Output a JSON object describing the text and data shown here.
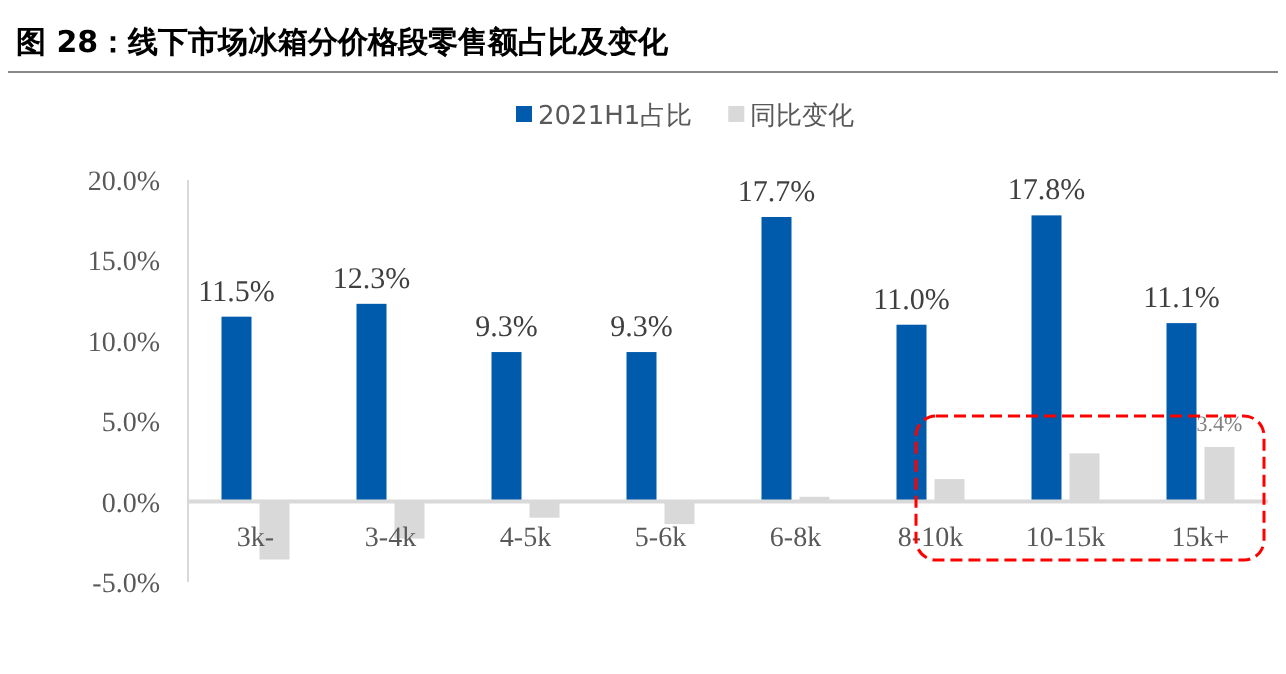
{
  "chart_data": {
    "type": "bar",
    "title": "图 28：线下市场冰箱分价格段零售额占比及变化",
    "categories": [
      "3k-",
      "3-4k",
      "4-5k",
      "5-6k",
      "6-8k",
      "8-10k",
      "10-15k",
      "15k+"
    ],
    "series": [
      {
        "name": "2021H1占比",
        "color": "#005bac",
        "values": [
          11.5,
          12.3,
          9.3,
          9.3,
          17.7,
          11.0,
          17.8,
          11.1
        ],
        "value_labels": [
          "11.5%",
          "12.3%",
          "9.3%",
          "9.3%",
          "17.7%",
          "11.0%",
          "17.8%",
          "11.1%"
        ]
      },
      {
        "name": "同比变化",
        "color": "#d9d9d9",
        "values": [
          -3.6,
          -2.3,
          -1.0,
          -1.4,
          0.3,
          1.4,
          3.0,
          3.4
        ],
        "value_labels": [
          null,
          null,
          null,
          null,
          null,
          null,
          null,
          "3.4%"
        ]
      }
    ],
    "ylim": [
      -5,
      20
    ],
    "yticks": [
      {
        "value": -5,
        "label": "-5.0%"
      },
      {
        "value": 0,
        "label": "0.0%"
      },
      {
        "value": 5,
        "label": "5.0%"
      },
      {
        "value": 10,
        "label": "10.0%"
      },
      {
        "value": 15,
        "label": "15.0%"
      },
      {
        "value": 20,
        "label": "20.0%"
      }
    ],
    "legend": "top",
    "grid": false
  }
}
